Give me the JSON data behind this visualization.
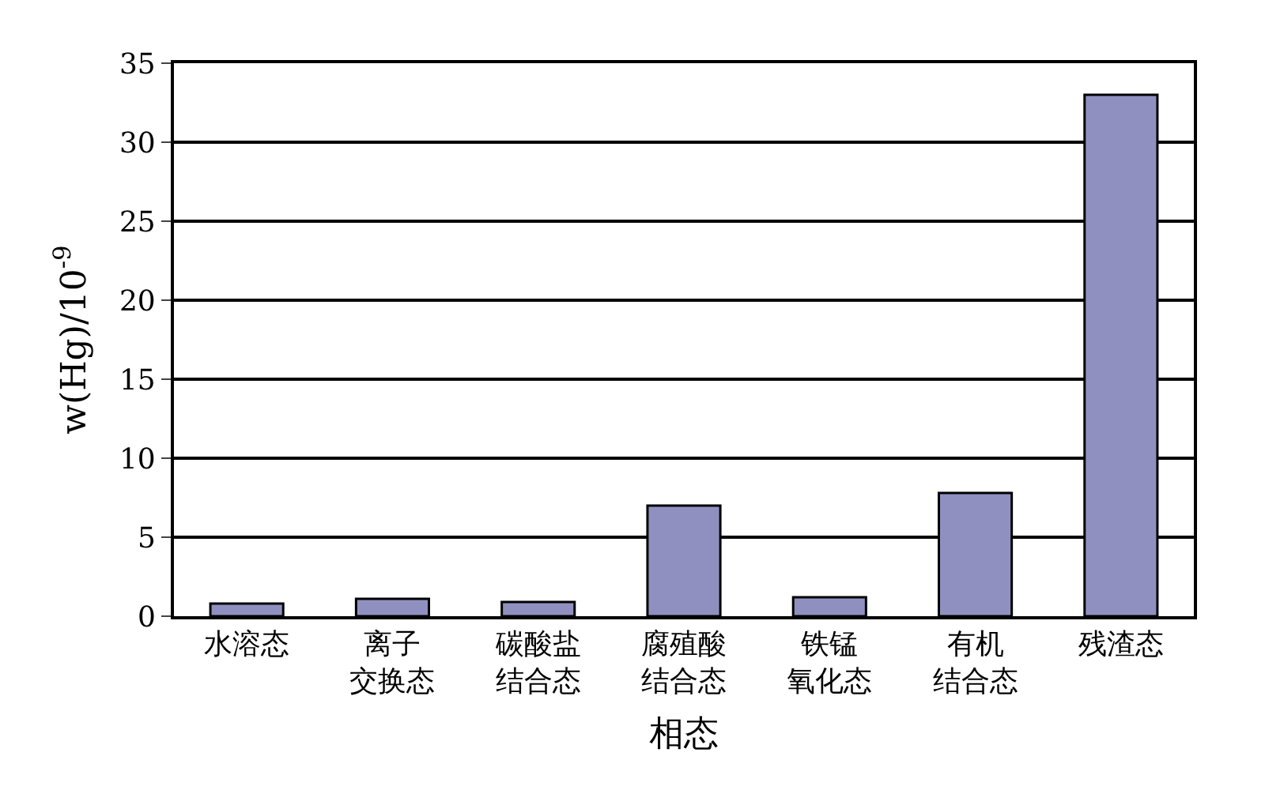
{
  "chart_data": {
    "type": "bar",
    "xlabel": "相态",
    "ylabel": "w(Hg)/10$^{-9}$",
    "categories": [
      "水溶态",
      "离子交换态",
      "碳酸盐结合态",
      "腐殖酸结合态",
      "铁锰氧化态",
      "有机结合态",
      "残渣态"
    ],
    "values": [
      0.8,
      1.1,
      0.9,
      7.0,
      1.2,
      7.8,
      33.0
    ],
    "color": "#9090c0",
    "ylim": [
      0,
      35
    ],
    "yticks": [
      0,
      5,
      10,
      15,
      20,
      25,
      30,
      35
    ],
    "grid": "y"
  }
}
